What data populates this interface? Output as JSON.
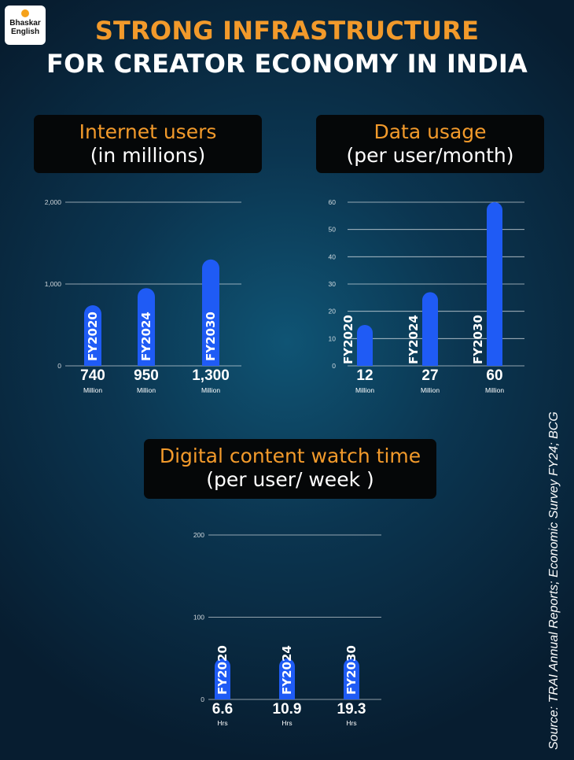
{
  "brand": {
    "line1": "Bhaskar",
    "line2": "English"
  },
  "header": {
    "title_line1": "STRONG INFRASTRUCTURE",
    "title_line2": "FOR CREATOR ECONOMY IN INDIA"
  },
  "colors": {
    "accent": "#f29a2b",
    "bar": "#1f5bf5",
    "background": "#0b3550"
  },
  "source": "Source: TRAI Annual Reports; Economic Survey FY24; BCG",
  "chart_data": [
    {
      "type": "bar",
      "title": "Internet users",
      "subtitle": "(in millions)",
      "categories": [
        "FY2020",
        "FY2024",
        "FY2030"
      ],
      "values": [
        740,
        950,
        1300
      ],
      "value_labels": [
        "740",
        "950",
        "1,300"
      ],
      "unit": "Million",
      "yticks": [
        0,
        1000,
        2000
      ],
      "ytick_labels": [
        "0",
        "1,000",
        "2,000"
      ],
      "ylim": [
        0,
        2000
      ],
      "grid": true
    },
    {
      "type": "bar",
      "title": "Data usage",
      "subtitle": "(per user/month)",
      "categories": [
        "FY2020",
        "FY2024",
        "FY2030"
      ],
      "values": [
        12,
        27,
        60
      ],
      "value_labels": [
        "12",
        "27",
        "60"
      ],
      "unit": "Million",
      "yticks": [
        0,
        10,
        20,
        30,
        40,
        50,
        60
      ],
      "ytick_labels": [
        "0",
        "10",
        "20",
        "30",
        "40",
        "50",
        "60"
      ],
      "ylim": [
        0,
        60
      ],
      "grid": true
    },
    {
      "type": "bar",
      "title": "Digital content watch time",
      "subtitle": "(per user/ week )",
      "categories": [
        "FY2020",
        "FY2024",
        "FY2030"
      ],
      "values": [
        6.6,
        10.9,
        19.3
      ],
      "value_labels": [
        "6.6",
        "10.9",
        "19.3"
      ],
      "unit": "Hrs",
      "yticks": [
        0,
        100,
        200
      ],
      "ytick_labels": [
        "0",
        "100",
        "200"
      ],
      "ylim": [
        0,
        200
      ],
      "grid": true
    }
  ]
}
